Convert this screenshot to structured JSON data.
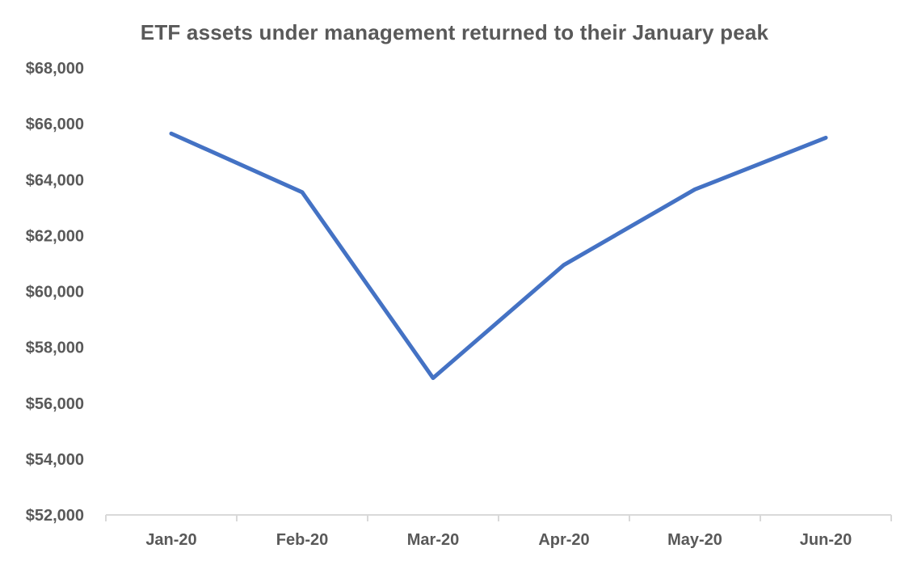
{
  "chart_data": {
    "type": "line",
    "title": "ETF assets under management returned to their January peak",
    "categories": [
      "Jan-20",
      "Feb-20",
      "Mar-20",
      "Apr-20",
      "May-20",
      "Jun-20"
    ],
    "series": [
      {
        "name": "ETF assets under management",
        "values": [
          65650,
          63550,
          56900,
          60950,
          63650,
          65500
        ]
      }
    ],
    "ylim": [
      52000,
      68000
    ],
    "ytick_step": 2000,
    "ytick_labels": [
      "$52,000",
      "$54,000",
      "$56,000",
      "$58,000",
      "$60,000",
      "$62,000",
      "$64,000",
      "$66,000",
      "$68,000"
    ],
    "grid": "off",
    "legend": "none",
    "colors": {
      "line": "#4472C4",
      "text": "#595959",
      "axis": "#D9D9D9",
      "background": "#FFFFFF"
    }
  }
}
